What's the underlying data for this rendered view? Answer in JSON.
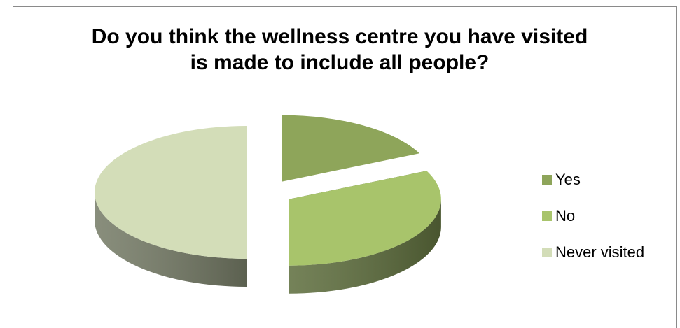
{
  "chart_data": {
    "type": "pie",
    "title_lines": [
      "Do you think the wellness centre you have visited",
      "is made to include all people?"
    ],
    "slices": [
      {
        "name": "Yes",
        "value": 18,
        "color": "#8ea55a"
      },
      {
        "name": "No",
        "value": 32,
        "color": "#a8c46b"
      },
      {
        "name": "Never visited",
        "value": 50,
        "color": "#d3ddb8"
      }
    ],
    "legend_position": "right",
    "exploded": true,
    "style": "3d"
  }
}
